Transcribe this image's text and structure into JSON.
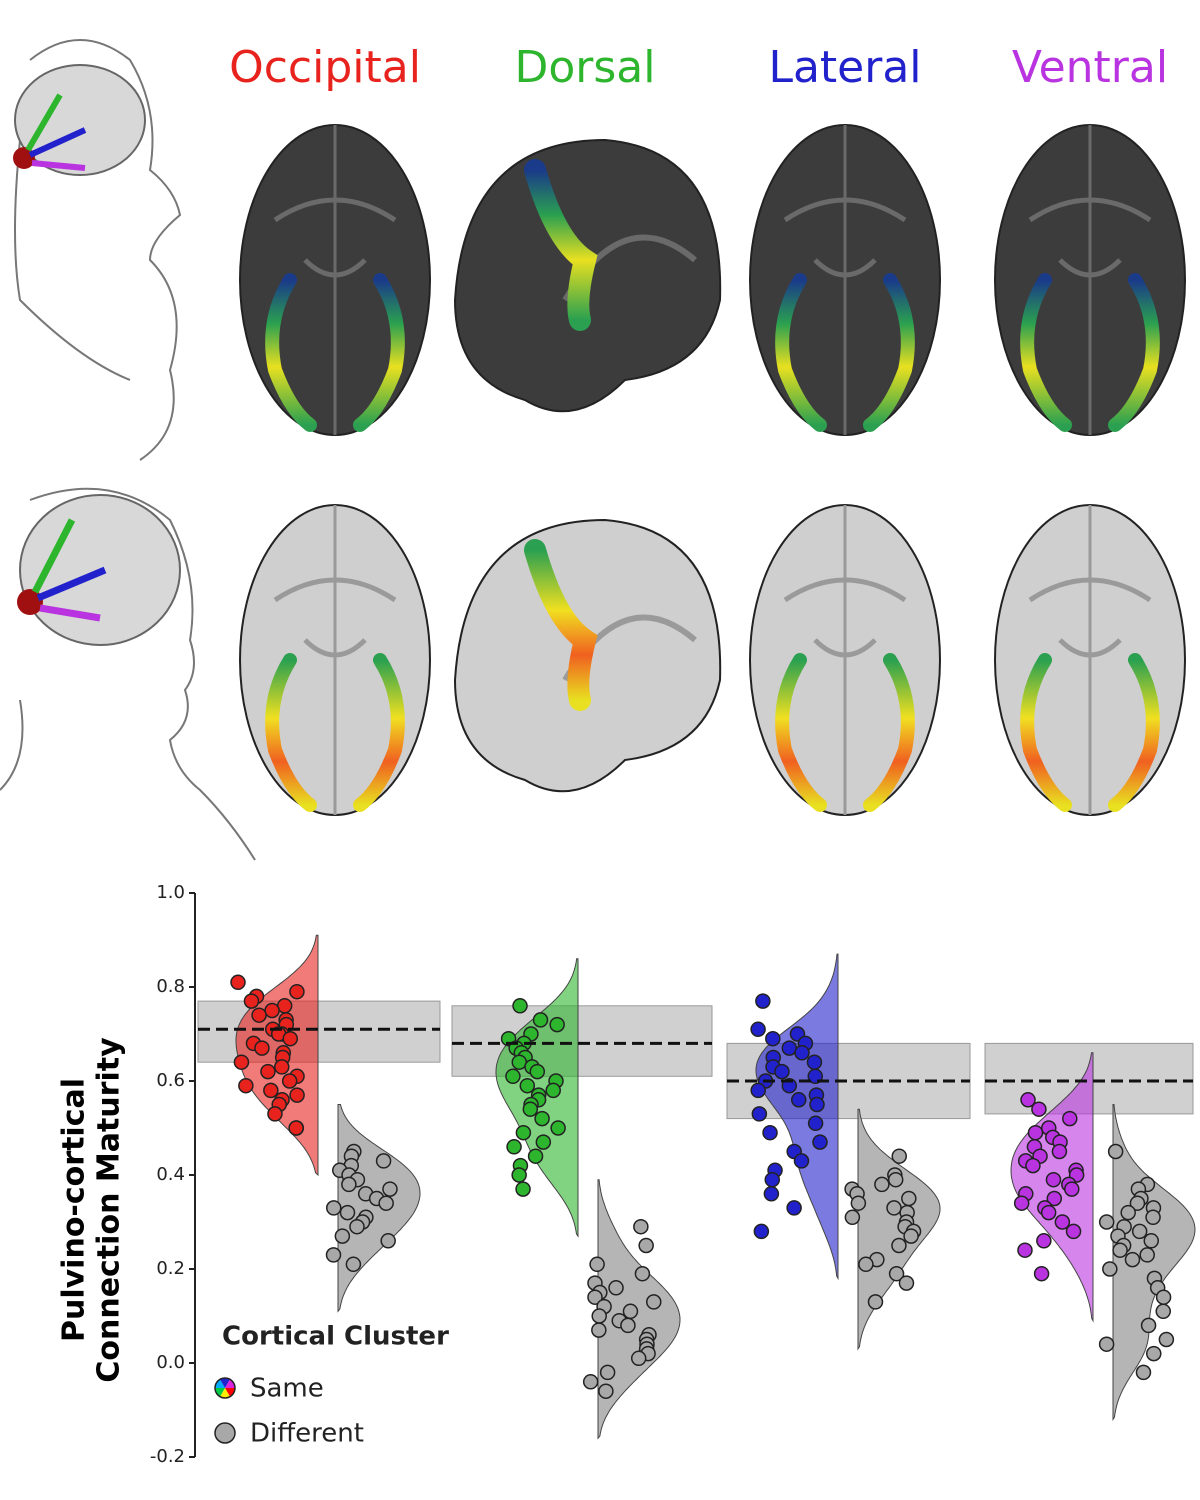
{
  "chart_data": {
    "type": "raincloud",
    "categories": [
      "Occipital",
      "Dorsal",
      "Lateral",
      "Ventral"
    ],
    "y_label_lines": [
      "Pulvino-cortical",
      "Connection Maturity"
    ],
    "ylim": [
      -0.2,
      1.0
    ],
    "yticks": [
      -0.2,
      {
        "value": 0.0,
        "label": "0.0"
      },
      0.2,
      0.4,
      0.6,
      0.8,
      {
        "value": 1.0,
        "label": "1.0"
      }
    ],
    "legend_title": "Cortical Cluster",
    "reference": [
      {
        "mean": 0.71,
        "low": 0.64,
        "high": 0.77
      },
      {
        "mean": 0.68,
        "low": 0.61,
        "high": 0.76
      },
      {
        "mean": 0.6,
        "low": 0.52,
        "high": 0.68
      },
      {
        "mean": 0.6,
        "low": 0.53,
        "high": 0.68
      }
    ],
    "series": [
      {
        "name": "Same",
        "colors": [
          "#e8231e",
          "#2db52d",
          "#2222cc",
          "#b934e0"
        ],
        "values": [
          [
            0.81,
            0.79,
            0.78,
            0.77,
            0.76,
            0.75,
            0.74,
            0.73,
            0.72,
            0.71,
            0.7,
            0.7,
            0.69,
            0.68,
            0.67,
            0.66,
            0.65,
            0.64,
            0.63,
            0.62,
            0.61,
            0.6,
            0.59,
            0.58,
            0.57,
            0.56,
            0.55,
            0.53,
            0.5,
            0.5
          ],
          [
            0.76,
            0.73,
            0.72,
            0.7,
            0.69,
            0.68,
            0.67,
            0.66,
            0.65,
            0.64,
            0.63,
            0.62,
            0.61,
            0.6,
            0.59,
            0.58,
            0.57,
            0.56,
            0.55,
            0.54,
            0.52,
            0.5,
            0.49,
            0.47,
            0.46,
            0.44,
            0.42,
            0.4,
            0.37
          ],
          [
            0.77,
            0.71,
            0.7,
            0.69,
            0.68,
            0.67,
            0.66,
            0.65,
            0.64,
            0.63,
            0.62,
            0.61,
            0.6,
            0.59,
            0.58,
            0.57,
            0.56,
            0.55,
            0.53,
            0.51,
            0.49,
            0.47,
            0.45,
            0.43,
            0.41,
            0.39,
            0.36,
            0.33,
            0.28
          ],
          [
            0.56,
            0.54,
            0.52,
            0.5,
            0.49,
            0.48,
            0.47,
            0.46,
            0.45,
            0.44,
            0.43,
            0.42,
            0.41,
            0.4,
            0.39,
            0.38,
            0.37,
            0.36,
            0.35,
            0.34,
            0.33,
            0.32,
            0.3,
            0.28,
            0.26,
            0.24,
            0.19
          ]
        ]
      },
      {
        "name": "Different",
        "color": "#a8a8a8",
        "values": [
          [
            0.45,
            0.44,
            0.43,
            0.42,
            0.41,
            0.4,
            0.39,
            0.38,
            0.37,
            0.36,
            0.35,
            0.34,
            0.33,
            0.32,
            0.31,
            0.3,
            0.29,
            0.27,
            0.26,
            0.23,
            0.21
          ],
          [
            0.29,
            0.25,
            0.21,
            0.19,
            0.17,
            0.16,
            0.15,
            0.14,
            0.13,
            0.12,
            0.11,
            0.1,
            0.09,
            0.08,
            0.07,
            0.06,
            0.05,
            0.04,
            0.03,
            0.02,
            0.01,
            -0.02,
            -0.04,
            -0.06
          ],
          [
            0.44,
            0.4,
            0.39,
            0.38,
            0.37,
            0.36,
            0.35,
            0.34,
            0.33,
            0.32,
            0.31,
            0.3,
            0.29,
            0.28,
            0.27,
            0.25,
            0.22,
            0.21,
            0.19,
            0.17,
            0.13
          ],
          [
            0.45,
            0.38,
            0.37,
            0.35,
            0.34,
            0.33,
            0.32,
            0.31,
            0.3,
            0.29,
            0.28,
            0.27,
            0.26,
            0.25,
            0.24,
            0.23,
            0.22,
            0.2,
            0.18,
            0.16,
            0.14,
            0.11,
            0.08,
            0.05,
            0.04,
            0.02,
            -0.02
          ]
        ]
      }
    ]
  }
}
